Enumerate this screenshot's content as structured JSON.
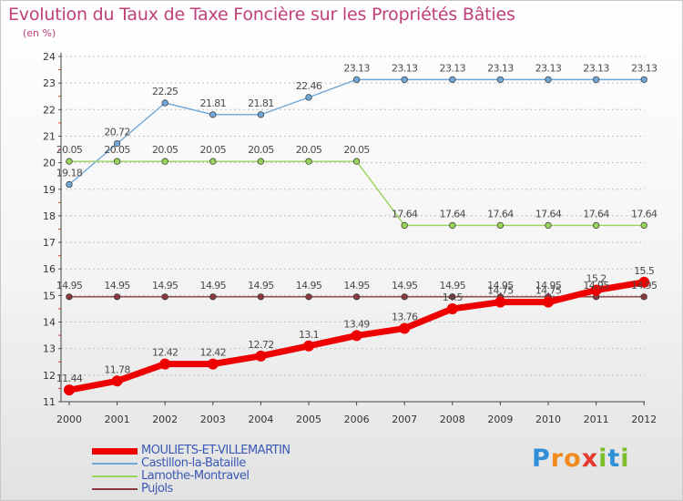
{
  "title": "Evolution du Taux de Taxe Foncière sur les Propriétés Bâties",
  "subtitle": "(en %)",
  "logo": {
    "text": "Proxiti",
    "letters": [
      {
        "ch": "P",
        "color": "#2f8fd8"
      },
      {
        "ch": "r",
        "color": "#f28a1e"
      },
      {
        "ch": "o",
        "color": "#f28a1e"
      },
      {
        "ch": "x",
        "color": "#e23a2e"
      },
      {
        "ch": "i",
        "color": "#7cbf2a"
      },
      {
        "ch": "t",
        "color": "#2f8fd8"
      },
      {
        "ch": "i",
        "color": "#7cbf2a"
      }
    ]
  },
  "chart_data": {
    "type": "line",
    "title": "Evolution du Taux de Taxe Foncière sur les Propriétés Bâties",
    "ylabel": "(en %)",
    "x": [
      "2000",
      "2001",
      "2002",
      "2003",
      "2004",
      "2005",
      "2006",
      "2007",
      "2008",
      "2009",
      "2010",
      "2011",
      "2012"
    ],
    "ylim": [
      11,
      24
    ],
    "yticks": [
      11,
      12,
      13,
      14,
      15,
      16,
      17,
      18,
      19,
      20,
      21,
      22,
      23,
      24
    ],
    "grid": "horizontal-dashed",
    "legend": "bottom-left",
    "series": [
      {
        "name": "MOULIETS-ET-VILLEMARTIN",
        "color": "#ee0000",
        "values": [
          11.44,
          11.78,
          12.42,
          12.42,
          12.72,
          13.1,
          13.49,
          13.76,
          14.5,
          14.75,
          14.75,
          15.2,
          15.5
        ],
        "labels": [
          "11.44",
          "11.78",
          "12.42",
          "12.42",
          "12.72",
          "13.1",
          "13.49",
          "13.76",
          "14.5",
          "14.75",
          "14.75",
          "15.2",
          "15.5"
        ]
      },
      {
        "name": "Castillon-la-Bataille",
        "color": "#6fa7d8",
        "values": [
          19.18,
          20.72,
          22.25,
          21.81,
          21.81,
          22.46,
          23.13,
          23.13,
          23.13,
          23.13,
          23.13,
          23.13,
          23.13
        ],
        "labels": [
          "19.18",
          "20.72",
          "22.25",
          "21.81",
          "21.81",
          "22.46",
          "23.13",
          "23.13",
          "23.13",
          "23.13",
          "23.13",
          "23.13",
          "23.13"
        ]
      },
      {
        "name": "Lamothe-Montravel",
        "color": "#99d45a",
        "values": [
          20.05,
          20.05,
          20.05,
          20.05,
          20.05,
          20.05,
          20.05,
          17.64,
          17.64,
          17.64,
          17.64,
          17.64,
          17.64
        ],
        "labels": [
          "20.05",
          "20.05",
          "20.05",
          "20.05",
          "20.05",
          "20.05",
          "20.05",
          "17.64",
          "17.64",
          "17.64",
          "17.64",
          "17.64",
          "17.64"
        ]
      },
      {
        "name": "Pujols",
        "color": "#8a3a3e",
        "values": [
          14.95,
          14.95,
          14.95,
          14.95,
          14.95,
          14.95,
          14.95,
          14.95,
          14.95,
          14.95,
          14.95,
          14.95,
          14.95
        ],
        "labels": [
          "14.95",
          "14.95",
          "14.95",
          "14.95",
          "14.95",
          "14.95",
          "14.95",
          "14.95",
          "14.95",
          "14.95",
          "14.95",
          "14.95",
          "14.95"
        ]
      }
    ]
  }
}
